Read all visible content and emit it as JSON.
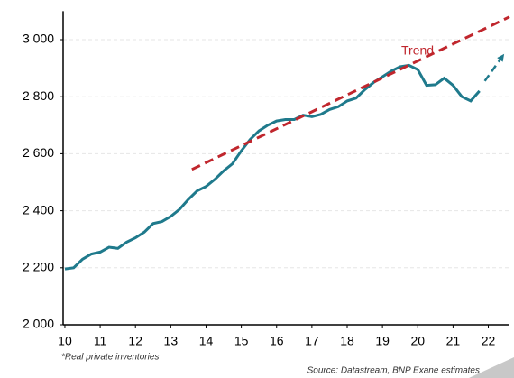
{
  "chart_data": {
    "type": "line",
    "x": [
      2010,
      2010.25,
      2010.5,
      2010.75,
      2011,
      2011.25,
      2011.5,
      2011.75,
      2012,
      2012.25,
      2012.5,
      2012.75,
      2013,
      2013.25,
      2013.5,
      2013.75,
      2014,
      2014.25,
      2014.5,
      2014.75,
      2015,
      2015.25,
      2015.5,
      2015.75,
      2016,
      2016.25,
      2016.5,
      2016.75,
      2017,
      2017.25,
      2017.5,
      2017.75,
      2018,
      2018.25,
      2018.5,
      2018.75,
      2019,
      2019.25,
      2019.5,
      2019.75,
      2020,
      2020.25,
      2020.5,
      2020.75,
      2021,
      2021.25,
      2021.5,
      2021.75
    ],
    "series": [
      {
        "name": "*Real private inventories",
        "color": "#1f7a8c",
        "values": [
          2196,
          2200,
          2230,
          2248,
          2255,
          2272,
          2268,
          2290,
          2305,
          2325,
          2355,
          2362,
          2380,
          2405,
          2440,
          2470,
          2485,
          2510,
          2540,
          2565,
          2610,
          2650,
          2680,
          2700,
          2715,
          2720,
          2720,
          2735,
          2730,
          2738,
          2755,
          2765,
          2785,
          2795,
          2825,
          2850,
          2870,
          2890,
          2905,
          2910,
          2895,
          2840,
          2842,
          2865,
          2840,
          2800,
          2785,
          2820
        ]
      },
      {
        "name": "Trend",
        "color": "#c0262d",
        "x": [
          2013.6,
          2022.6
        ],
        "values": [
          2545,
          3080
        ]
      }
    ],
    "arrow": {
      "x": [
        2021.9,
        2022.45
      ],
      "values": [
        2855,
        2950
      ]
    },
    "xlim": [
      2009.95,
      2022.6
    ],
    "xticks": [
      {
        "value": 2010,
        "label": "10"
      },
      {
        "value": 2011,
        "label": "11"
      },
      {
        "value": 2012,
        "label": "12"
      },
      {
        "value": 2013,
        "label": "13"
      },
      {
        "value": 2014,
        "label": "14"
      },
      {
        "value": 2015,
        "label": "15"
      },
      {
        "value": 2016,
        "label": "16"
      },
      {
        "value": 2017,
        "label": "17"
      },
      {
        "value": 2018,
        "label": "18"
      },
      {
        "value": 2019,
        "label": "19"
      },
      {
        "value": 2020,
        "label": "20"
      },
      {
        "value": 2021,
        "label": "21"
      },
      {
        "value": 2022,
        "label": "22"
      }
    ],
    "ylim": [
      2000,
      3100
    ],
    "yticks": [
      {
        "value": 2000,
        "label": "2 000"
      },
      {
        "value": 2200,
        "label": "2 200"
      },
      {
        "value": 2400,
        "label": "2 400"
      },
      {
        "value": 2600,
        "label": "2 600"
      },
      {
        "value": 2800,
        "label": "2 800"
      },
      {
        "value": 3000,
        "label": "3 000"
      }
    ],
    "grid": true,
    "source": "Source: Datastream, BNP Exane estimates"
  }
}
